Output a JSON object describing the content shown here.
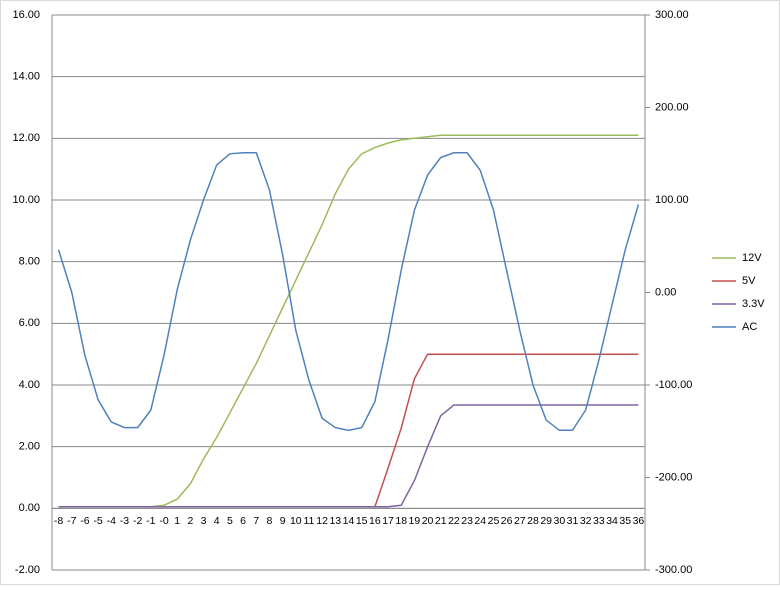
{
  "chart_data": {
    "type": "line",
    "categories": [
      "-8",
      "-7",
      "-6",
      "-5",
      "-4",
      "-3",
      "-2",
      "-1",
      "-0",
      "1",
      "2",
      "3",
      "4",
      "5",
      "6",
      "7",
      "8",
      "9",
      "10",
      "11",
      "12",
      "13",
      "14",
      "15",
      "16",
      "17",
      "18",
      "19",
      "20",
      "21",
      "22",
      "23",
      "24",
      "25",
      "26",
      "27",
      "28",
      "29",
      "30",
      "31",
      "32",
      "33",
      "34",
      "35",
      "36"
    ],
    "series": [
      {
        "name": "12V",
        "color": "#9bbb59",
        "values": [
          0.05,
          0.05,
          0.05,
          0.05,
          0.05,
          0.05,
          0.05,
          0.05,
          0.1,
          0.3,
          0.8,
          1.6,
          2.3,
          3.1,
          3.9,
          4.7,
          5.6,
          6.5,
          7.4,
          8.3,
          9.2,
          10.2,
          11.0,
          11.5,
          11.7,
          11.85,
          11.95,
          12.0,
          12.05,
          12.1,
          12.1,
          12.1,
          12.1,
          12.1,
          12.1,
          12.1,
          12.1,
          12.1,
          12.1,
          12.1,
          12.1,
          12.1,
          12.1,
          12.1,
          12.1
        ]
      },
      {
        "name": "5V",
        "color": "#c0504d",
        "values": [
          0.05,
          0.05,
          0.05,
          0.05,
          0.05,
          0.05,
          0.05,
          0.05,
          0.05,
          0.05,
          0.05,
          0.05,
          0.05,
          0.05,
          0.05,
          0.05,
          0.05,
          0.05,
          0.05,
          0.05,
          0.05,
          0.05,
          0.05,
          0.05,
          0.05,
          1.3,
          2.6,
          4.2,
          5.0,
          5.0,
          5.0,
          5.0,
          5.0,
          5.0,
          5.0,
          5.0,
          5.0,
          5.0,
          5.0,
          5.0,
          5.0,
          5.0,
          5.0,
          5.0,
          5.0
        ]
      },
      {
        "name": "3.3V",
        "color": "#8064a2",
        "values": [
          0.05,
          0.05,
          0.05,
          0.05,
          0.05,
          0.05,
          0.05,
          0.05,
          0.05,
          0.05,
          0.05,
          0.05,
          0.05,
          0.05,
          0.05,
          0.05,
          0.05,
          0.05,
          0.05,
          0.05,
          0.05,
          0.05,
          0.05,
          0.05,
          0.05,
          0.05,
          0.1,
          0.9,
          2.0,
          3.0,
          3.35,
          3.35,
          3.35,
          3.35,
          3.35,
          3.35,
          3.35,
          3.35,
          3.35,
          3.35,
          3.35,
          3.35,
          3.35,
          3.35,
          3.35
        ]
      },
      {
        "name": "AC",
        "color": "#4f81bd",
        "axis": "y2",
        "values": [
          46,
          0,
          -68,
          -116,
          -140,
          -146,
          -146,
          -127,
          -68,
          3,
          57,
          100,
          138,
          150,
          151,
          151,
          111,
          41,
          -41,
          -95,
          -136,
          -146,
          -149,
          -146,
          -118,
          -51,
          24,
          89,
          127,
          146,
          151,
          151,
          132,
          89,
          24,
          -41,
          -100,
          -138,
          -149,
          -149,
          -127,
          -73,
          -13,
          46,
          95
        ]
      }
    ],
    "ylim": [
      -2,
      16
    ],
    "yticks": [
      {
        "value": -2,
        "label": "-2.00"
      },
      {
        "value": 0,
        "label": "0.00"
      },
      {
        "value": 2,
        "label": "2.00"
      },
      {
        "value": 4,
        "label": "4.00"
      },
      {
        "value": 6,
        "label": "6.00"
      },
      {
        "value": 8,
        "label": "8.00"
      },
      {
        "value": 10,
        "label": "10.00"
      },
      {
        "value": 12,
        "label": "12.00"
      },
      {
        "value": 14,
        "label": "14.00"
      },
      {
        "value": 16,
        "label": "16.00"
      }
    ],
    "y2lim": [
      -300,
      300
    ],
    "y2ticks": [
      {
        "value": -300,
        "label": "-300.00"
      },
      {
        "value": -200,
        "label": "-200.00"
      },
      {
        "value": -100,
        "label": "-100.00"
      },
      {
        "value": 0,
        "label": "0.00"
      },
      {
        "value": 100,
        "label": "100.00"
      },
      {
        "value": 200,
        "label": "200.00"
      },
      {
        "value": 300,
        "label": "300.00"
      }
    ],
    "grid": true,
    "legend": "right"
  }
}
